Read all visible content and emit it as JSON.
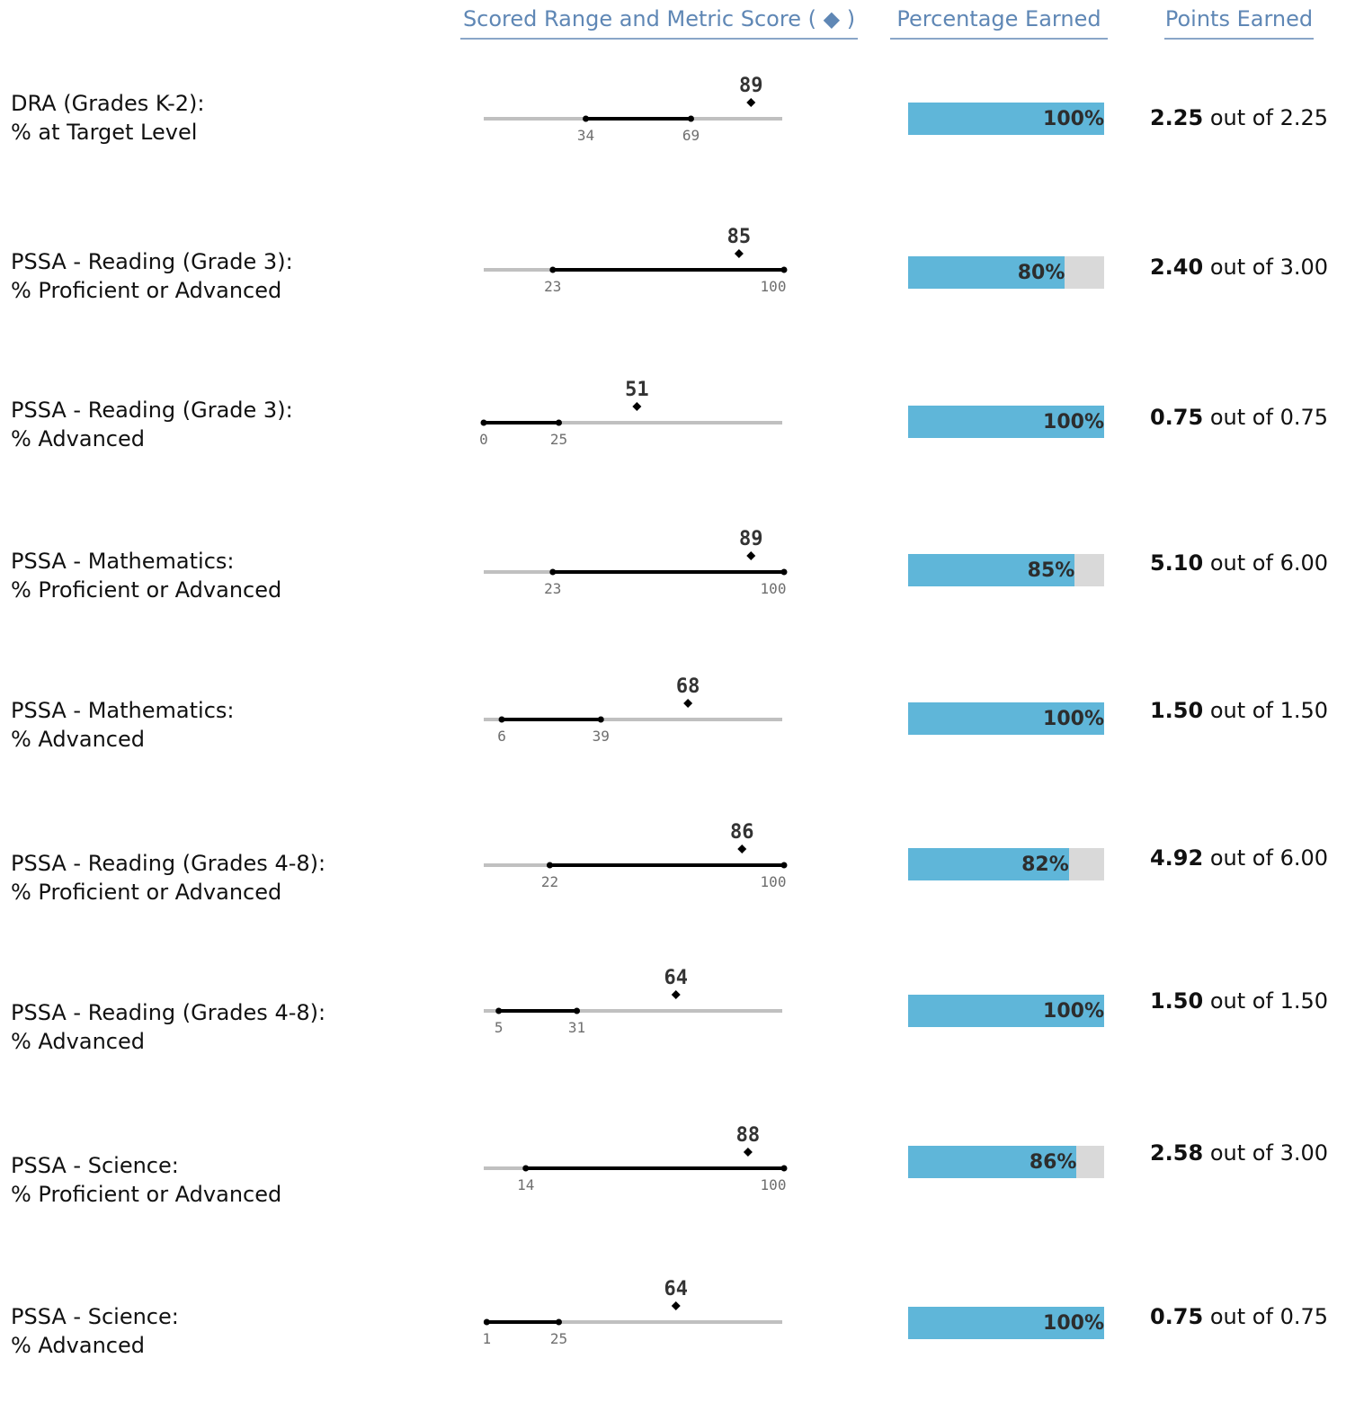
{
  "header": {
    "range_label": "Scored Range and Metric Score",
    "range_symbol": "( ◆ )",
    "percentage_label": "Percentage Earned",
    "points_label": "Points Earned"
  },
  "colors": {
    "bar_fill": "#5fb6d9",
    "bar_track": "#d9d9d9",
    "header_text": "#5f87b5",
    "range_line": "#000000",
    "axis_line": "#c0c0c0"
  },
  "rows": [
    {
      "label1": "DRA (Grades K-2):",
      "label2": "% at Target Level",
      "low": 34,
      "high": 69,
      "score": 89,
      "percent": 100,
      "percent_label": "100%",
      "earned": "2.25",
      "out_of": "out of",
      "possible": "2.25"
    },
    {
      "label1": "PSSA - Reading (Grade 3):",
      "label2": "% Proficient or Advanced",
      "low": 23,
      "high": 100,
      "score": 85,
      "percent": 80,
      "percent_label": "80%",
      "earned": "2.40",
      "out_of": "out of",
      "possible": "3.00"
    },
    {
      "label1": "PSSA - Reading (Grade 3):",
      "label2": "% Advanced",
      "low": 0,
      "high": 25,
      "score": 51,
      "percent": 100,
      "percent_label": "100%",
      "earned": "0.75",
      "out_of": "out of",
      "possible": "0.75"
    },
    {
      "label1": "PSSA - Mathematics:",
      "label2": "% Proficient or Advanced",
      "low": 23,
      "high": 100,
      "score": 89,
      "percent": 85,
      "percent_label": "85%",
      "earned": "5.10",
      "out_of": "out of",
      "possible": "6.00"
    },
    {
      "label1": "PSSA - Mathematics:",
      "label2": "% Advanced",
      "low": 6,
      "high": 39,
      "score": 68,
      "percent": 100,
      "percent_label": "100%",
      "earned": "1.50",
      "out_of": "out of",
      "possible": "1.50"
    },
    {
      "label1": "PSSA - Reading (Grades 4-8):",
      "label2": "% Proficient or Advanced",
      "low": 22,
      "high": 100,
      "score": 86,
      "percent": 82,
      "percent_label": "82%",
      "earned": "4.92",
      "out_of": "out of",
      "possible": "6.00"
    },
    {
      "label1": "PSSA - Reading (Grades 4-8):",
      "label2": "% Advanced",
      "low": 5,
      "high": 31,
      "score": 64,
      "percent": 100,
      "percent_label": "100%",
      "earned": "1.50",
      "out_of": "out of",
      "possible": "1.50"
    },
    {
      "label1": "PSSA - Science:",
      "label2": "% Proficient or Advanced",
      "low": 14,
      "high": 100,
      "score": 88,
      "percent": 86,
      "percent_label": "86%",
      "earned": "2.58",
      "out_of": "out of",
      "possible": "3.00"
    },
    {
      "label1": "PSSA - Science:",
      "label2": "% Advanced",
      "low": 1,
      "high": 25,
      "score": 64,
      "percent": 100,
      "percent_label": "100%",
      "earned": "0.75",
      "out_of": "out of",
      "possible": "0.75"
    }
  ]
}
